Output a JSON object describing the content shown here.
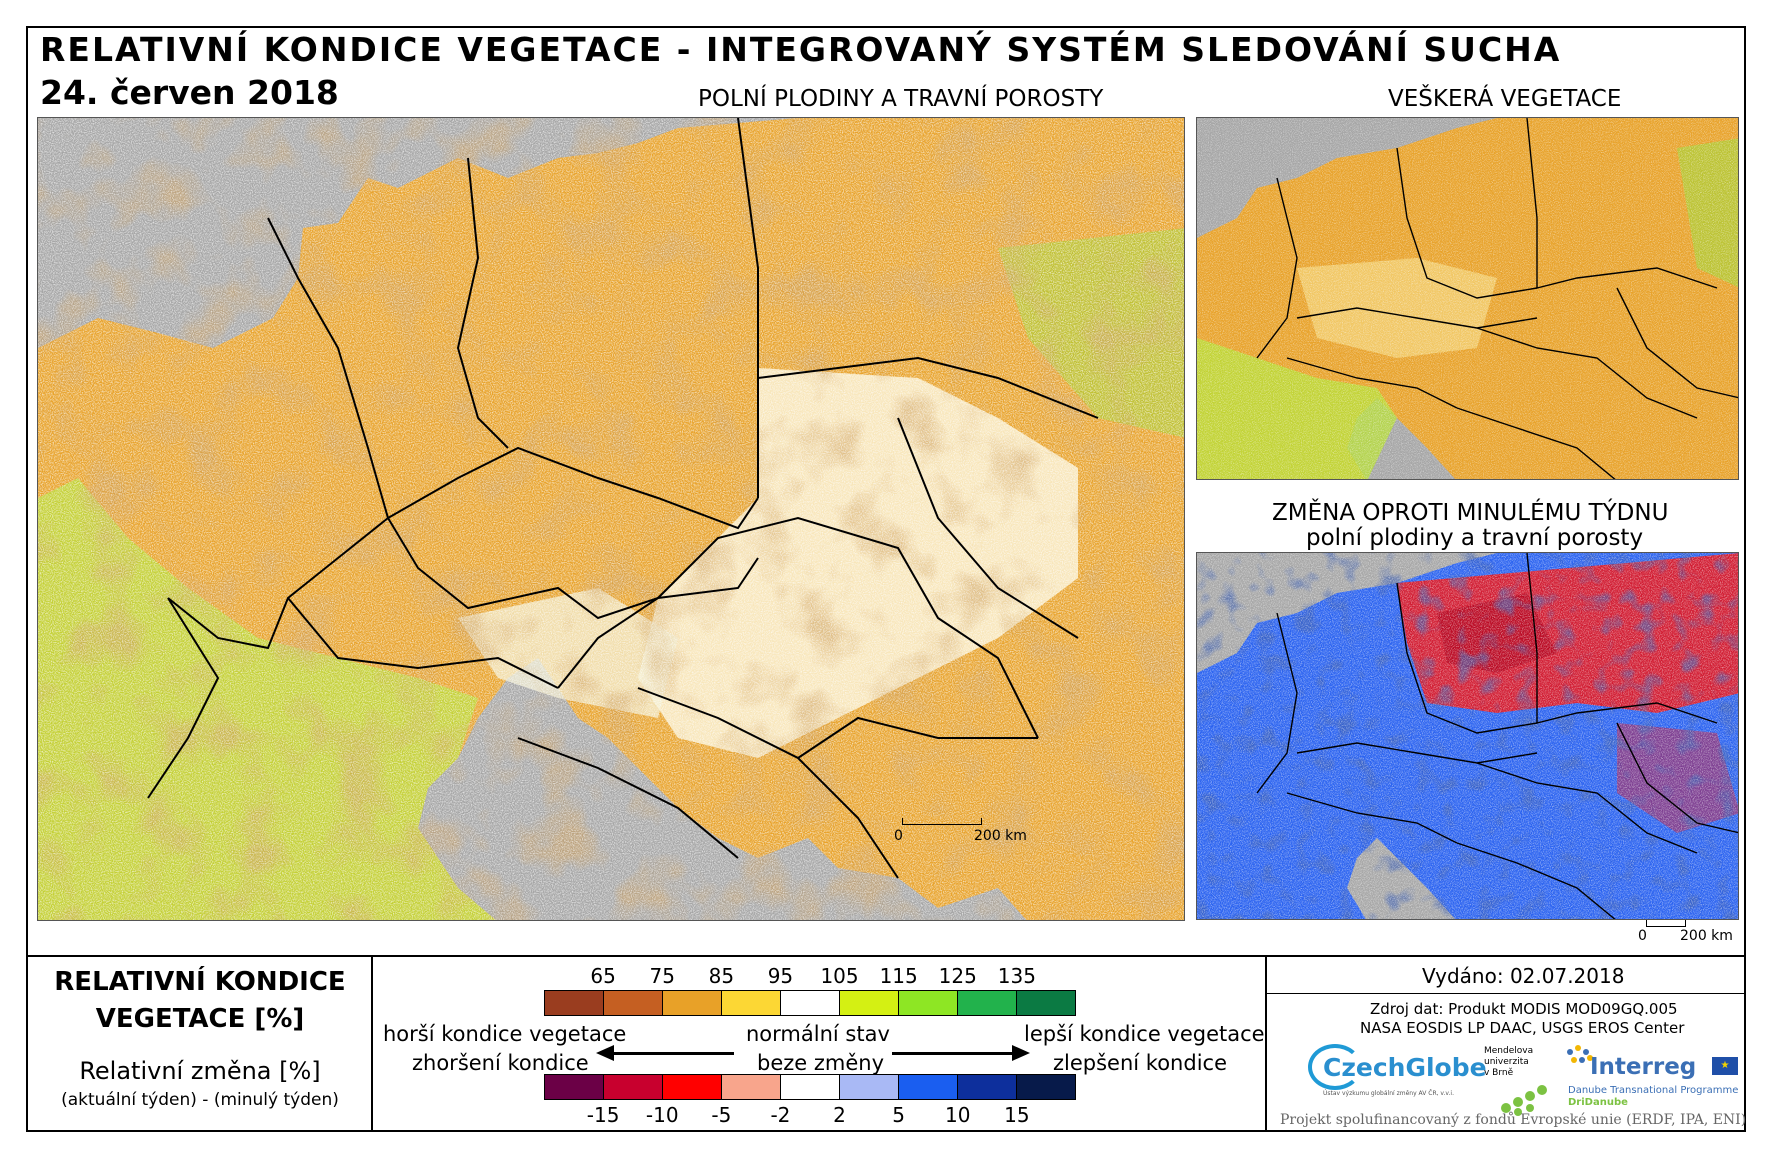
{
  "header": {
    "title": "RELATIVNÍ KONDICE VEGETACE - INTEGROVANÝ SYSTÉM SLEDOVÁNÍ SUCHA",
    "date": "24. červen 2018"
  },
  "panels": {
    "main_label": "POLNÍ PLODINY A TRAVNÍ POROSTY",
    "all_veg_label": "VEŠKERÁ VEGETACE",
    "change_label_1": "ZMĚNA OPROTI MINULÉMU TÝDNU",
    "change_label_2": "polní plodiny a travní porosty"
  },
  "scale": {
    "zero": "0",
    "distance": "200 km"
  },
  "legend": {
    "title_1": "RELATIVNÍ KONDICE",
    "title_2": "VEGETACE [%]",
    "change_title": "Relativní změna [%]",
    "change_subtitle": "(aktuální týden) - (minulý týden)",
    "condition_ticks": [
      "65",
      "75",
      "85",
      "95",
      "105",
      "115",
      "125",
      "135"
    ],
    "condition_colors": [
      "#9a3d1f",
      "#c55f22",
      "#e8a128",
      "#fcd734",
      "#ffffff",
      "#d4f013",
      "#8ee624",
      "#22b24c",
      "#0b7a43"
    ],
    "change_ticks": [
      "-15",
      "-10",
      "-5",
      "-2",
      "2",
      "5",
      "10",
      "15"
    ],
    "change_colors": [
      "#6b0046",
      "#c8002e",
      "#ff0000",
      "#f8a58c",
      "#ffffff",
      "#a9b9f5",
      "#1a5ef0",
      "#0d2f9c",
      "#071a4a"
    ],
    "worse_1": "horší kondice vegetace",
    "worse_2": "zhoršení kondice",
    "normal_1": "normální stav",
    "normal_2": "beze změny",
    "better_1": "lepší kondice vegetace",
    "better_2": "zlepšení kondice"
  },
  "info": {
    "issued": "Vydáno: 02.07.2018",
    "source_1": "Zdroj dat: Produkt MODIS MOD09GQ.005",
    "source_2": "NASA EOSDIS LP DAAC, USGS EROS Center",
    "logo_czechglobe": "CzechGlobe",
    "czechglobe_sub": "Ústav výzkumu globální změny AV ČR, v.v.i.",
    "logo_mendel_1": "Mendelova",
    "logo_mendel_2": "univerzita",
    "logo_mendel_3": "v Brně",
    "logo_interreg": "Interreg",
    "interreg_sub_1": "Danube Transnational Programme",
    "interreg_sub_2": "DriDanube",
    "project": "Projekt spolufinancovaný z fondů Evropské unie (ERDF, IPA, ENI)"
  }
}
